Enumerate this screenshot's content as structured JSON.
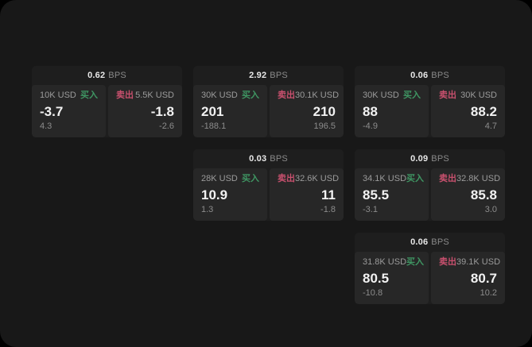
{
  "colors": {
    "outer_bg": "#000000",
    "page_bg": "#181818",
    "card_bg": "#1e1e1e",
    "panel_bg": "#272727",
    "buy_green": "#3f9663",
    "sell_red": "#c8506e",
    "value_white": "#f2f2f2",
    "label_gray": "#9b9b9b"
  },
  "labels": {
    "buy": "买入",
    "sell": "卖出",
    "bps": "BPS"
  },
  "cards": [
    {
      "row": 1,
      "col": 1,
      "bps": "0.62",
      "buy": {
        "amount": "10K USD",
        "price": "-3.7",
        "sub": "4.3"
      },
      "sell": {
        "amount": "5.5K USD",
        "price": "-1.8",
        "sub": "-2.6"
      }
    },
    {
      "row": 1,
      "col": 2,
      "bps": "2.92",
      "buy": {
        "amount": "30K USD",
        "price": "201",
        "sub": "-188.1"
      },
      "sell": {
        "amount": "30.1K USD",
        "price": "210",
        "sub": "196.5"
      }
    },
    {
      "row": 1,
      "col": 3,
      "bps": "0.06",
      "buy": {
        "amount": "30K USD",
        "price": "88",
        "sub": "-4.9"
      },
      "sell": {
        "amount": "30K USD",
        "price": "88.2",
        "sub": "4.7"
      }
    },
    {
      "row": 2,
      "col": 2,
      "bps": "0.03",
      "buy": {
        "amount": "28K USD",
        "price": "10.9",
        "sub": "1.3"
      },
      "sell": {
        "amount": "32.6K USD",
        "price": "11",
        "sub": "-1.8"
      }
    },
    {
      "row": 2,
      "col": 3,
      "bps": "0.09",
      "buy": {
        "amount": "34.1K USD",
        "price": "85.5",
        "sub": "-3.1"
      },
      "sell": {
        "amount": "32.8K USD",
        "price": "85.8",
        "sub": "3.0"
      }
    },
    {
      "row": 3,
      "col": 3,
      "bps": "0.06",
      "buy": {
        "amount": "31.8K USD",
        "price": "80.5",
        "sub": "-10.8"
      },
      "sell": {
        "amount": "39.1K USD",
        "price": "80.7",
        "sub": "10.2"
      }
    }
  ]
}
